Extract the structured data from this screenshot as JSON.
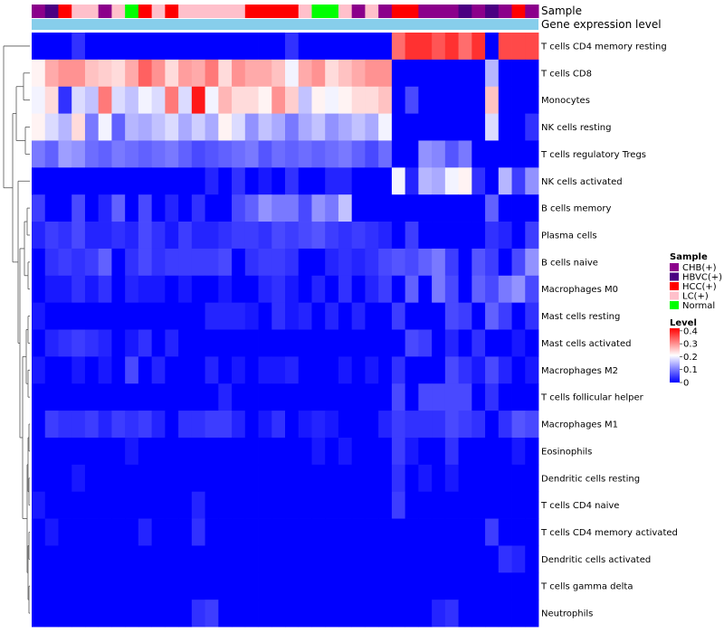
{
  "chart_data": {
    "type": "heatmap",
    "annotation_labels": {
      "sample": "Sample",
      "gene": "Gene expression level"
    },
    "legend_sample": {
      "title": "Sample",
      "items": [
        {
          "label": "CHB(+)",
          "color": "#8B008B"
        },
        {
          "label": "HBVC(+)",
          "color": "#4B0082"
        },
        {
          "label": "HCC(+)",
          "color": "#FF0000"
        },
        {
          "label": "LC(+)",
          "color": "#FFC0CB"
        },
        {
          "label": "Normal",
          "color": "#00FF00"
        }
      ]
    },
    "legend_level": {
      "title": "Level",
      "ticks": [
        "0.4",
        "0.3",
        "0.2",
        "0.1",
        "0"
      ],
      "tick_values": [
        0.4,
        0.3,
        0.2,
        0.1,
        0.0
      ],
      "range": [
        0,
        0.42
      ]
    },
    "colors": {
      "low": "#0000FF",
      "mid": "#FFFFFF",
      "high": "#FF0000",
      "gene_bar": "#87CEEB"
    },
    "sample_groups": [
      "CHB(+)",
      "HBVC(+)",
      "HCC(+)",
      "LC(+)",
      "LC(+)",
      "CHB(+)",
      "LC(+)",
      "Normal",
      "HCC(+)",
      "LC(+)",
      "HCC(+)",
      "LC(+)",
      "LC(+)",
      "LC(+)",
      "LC(+)",
      "LC(+)",
      "HCC(+)",
      "HCC(+)",
      "HCC(+)",
      "HCC(+)",
      "LC(+)",
      "Normal",
      "Normal",
      "LC(+)",
      "CHB(+)",
      "LC(+)",
      "CHB(+)",
      "HCC(+)",
      "HCC(+)",
      "CHB(+)",
      "CHB(+)",
      "CHB(+)",
      "HBVC(+)",
      "CHB(+)",
      "HBVC(+)",
      "CHB(+)",
      "HCC(+)",
      "CHB(+)"
    ],
    "rows": [
      {
        "label": "T cells CD4 memory resting",
        "values": [
          0,
          0,
          0,
          0.04,
          0,
          0,
          0,
          0,
          0,
          0,
          0,
          0,
          0,
          0,
          0,
          0,
          0,
          0,
          0,
          0.04,
          0,
          0,
          0,
          0,
          0,
          0,
          0,
          0.33,
          0.38,
          0.38,
          0.35,
          0.38,
          0.33,
          0.38,
          0,
          0.36,
          0.36,
          0.36
        ]
      },
      {
        "label": "T cells CD8",
        "values": [
          0.22,
          0.28,
          0.3,
          0.3,
          0.26,
          0.25,
          0.24,
          0.28,
          0.34,
          0.3,
          0.24,
          0.29,
          0.28,
          0.32,
          0.24,
          0.3,
          0.28,
          0.28,
          0.26,
          0.2,
          0.28,
          0.3,
          0.24,
          0.26,
          0.28,
          0.3,
          0.3,
          0,
          0,
          0,
          0,
          0,
          0,
          0,
          0.15,
          0,
          0,
          0
        ]
      },
      {
        "label": "Monocytes",
        "values": [
          0.2,
          0.24,
          0.04,
          0.18,
          0.16,
          0.32,
          0.18,
          0.16,
          0.2,
          0.18,
          0.32,
          0.18,
          0.4,
          0.2,
          0.27,
          0.24,
          0.24,
          0.22,
          0.3,
          0.25,
          0.16,
          0.22,
          0.2,
          0.22,
          0.24,
          0.24,
          0.26,
          0,
          0.06,
          0,
          0,
          0,
          0,
          0,
          0.26,
          0,
          0,
          0
        ]
      },
      {
        "label": "NK cells resting",
        "values": [
          0.22,
          0.18,
          0.15,
          0.24,
          0.1,
          0.2,
          0.08,
          0.15,
          0.14,
          0.16,
          0.18,
          0.14,
          0.17,
          0.14,
          0.22,
          0.18,
          0.12,
          0.16,
          0.14,
          0.1,
          0.14,
          0.16,
          0.12,
          0.14,
          0.16,
          0.14,
          0.2,
          0,
          0,
          0,
          0,
          0,
          0,
          0,
          0.18,
          0,
          0,
          0.04
        ]
      },
      {
        "label": "T cells regulatory  Tregs",
        "values": [
          0.1,
          0.08,
          0.13,
          0.12,
          0.09,
          0.08,
          0.1,
          0.09,
          0.08,
          0.09,
          0.1,
          0.08,
          0.06,
          0.07,
          0.08,
          0.09,
          0.1,
          0.07,
          0.09,
          0.08,
          0.09,
          0.08,
          0.09,
          0.1,
          0.08,
          0.06,
          0.09,
          0,
          0,
          0.12,
          0.11,
          0.07,
          0.1,
          0,
          0,
          0,
          0,
          0
        ]
      },
      {
        "label": "NK cells activated",
        "values": [
          0,
          0,
          0,
          0,
          0,
          0,
          0,
          0,
          0,
          0,
          0,
          0,
          0,
          0.03,
          0,
          0.04,
          0,
          0.02,
          0,
          0.04,
          0,
          0,
          0.03,
          0.03,
          0,
          0,
          0,
          0.2,
          0.03,
          0.15,
          0.14,
          0.2,
          0.22,
          0.04,
          0,
          0.15,
          0.05,
          0.12
        ]
      },
      {
        "label": "B cells memory",
        "values": [
          0.05,
          0,
          0,
          0.06,
          0,
          0.03,
          0.08,
          0,
          0.06,
          0,
          0.03,
          0,
          0.04,
          0,
          0,
          0.06,
          0.08,
          0.12,
          0.1,
          0.1,
          0.06,
          0.12,
          0.1,
          0.16,
          0,
          0,
          0,
          0,
          0,
          0,
          0,
          0,
          0,
          0,
          0.08,
          0,
          0,
          0
        ]
      },
      {
        "label": "Plasma cells",
        "values": [
          0.03,
          0.05,
          0.04,
          0.06,
          0.03,
          0.03,
          0.04,
          0.03,
          0.06,
          0.04,
          0.02,
          0.05,
          0.03,
          0.03,
          0.04,
          0.05,
          0.05,
          0.04,
          0.06,
          0.05,
          0.06,
          0.07,
          0.05,
          0.04,
          0.05,
          0.04,
          0.03,
          0,
          0.05,
          0,
          0,
          0,
          0,
          0,
          0.04,
          0.03,
          0,
          0.05
        ]
      },
      {
        "label": "B cells naive",
        "values": [
          0,
          0.04,
          0.05,
          0.04,
          0.05,
          0.08,
          0,
          0.04,
          0.06,
          0.04,
          0.05,
          0.05,
          0.05,
          0.05,
          0.06,
          0,
          0.04,
          0.05,
          0.05,
          0.04,
          0,
          0,
          0.03,
          0.04,
          0.03,
          0.04,
          0.06,
          0.07,
          0.06,
          0.08,
          0.1,
          0.05,
          0,
          0.07,
          0.05,
          0,
          0.06,
          0.12
        ]
      },
      {
        "label": "Macrophages M0",
        "values": [
          0,
          0.02,
          0.02,
          0.04,
          0.02,
          0.04,
          0,
          0.03,
          0.02,
          0.02,
          0,
          0.02,
          0,
          0,
          0.02,
          0,
          0,
          0.03,
          0.04,
          0.02,
          0,
          0.03,
          0,
          0.04,
          0,
          0.03,
          0.05,
          0,
          0.08,
          0,
          0.1,
          0.06,
          0,
          0.08,
          0.06,
          0.1,
          0.12,
          0.06
        ]
      },
      {
        "label": "Mast cells resting",
        "values": [
          0.02,
          0,
          0,
          0,
          0,
          0,
          0,
          0,
          0,
          0,
          0,
          0,
          0,
          0.03,
          0.03,
          0.03,
          0.02,
          0,
          0.04,
          0.02,
          0.03,
          0,
          0.03,
          0,
          0.03,
          0,
          0,
          0.05,
          0,
          0,
          0,
          0.06,
          0.05,
          0,
          0.08,
          0.05,
          0,
          0.04
        ]
      },
      {
        "label": "Mast cells activated",
        "values": [
          0,
          0.03,
          0.04,
          0.05,
          0.04,
          0.03,
          0,
          0.02,
          0.04,
          0,
          0.03,
          0,
          0,
          0,
          0,
          0,
          0,
          0,
          0,
          0,
          0,
          0,
          0,
          0,
          0,
          0,
          0,
          0,
          0.06,
          0.05,
          0,
          0.03,
          0,
          0.04,
          0,
          0,
          0.02,
          0
        ]
      },
      {
        "label": "Macrophages M2",
        "values": [
          0.02,
          0,
          0,
          0.02,
          0,
          0.02,
          0,
          0.06,
          0,
          0.03,
          0,
          0,
          0,
          0.03,
          0,
          0.02,
          0,
          0.02,
          0.02,
          0.03,
          0,
          0,
          0,
          0.02,
          0,
          0.02,
          0,
          0.04,
          0,
          0,
          0,
          0.06,
          0.04,
          0.02,
          0.06,
          0.03,
          0,
          0.02
        ]
      },
      {
        "label": "T cells follicular helper",
        "values": [
          0,
          0,
          0,
          0,
          0,
          0,
          0,
          0,
          0,
          0,
          0,
          0,
          0,
          0,
          0.03,
          0,
          0,
          0,
          0,
          0,
          0,
          0,
          0,
          0,
          0,
          0,
          0,
          0.06,
          0,
          0.06,
          0.06,
          0.06,
          0.06,
          0,
          0.04,
          0,
          0,
          0
        ]
      },
      {
        "label": "Macrophages M1",
        "values": [
          0,
          0.05,
          0.04,
          0.04,
          0.05,
          0.03,
          0.05,
          0.04,
          0.05,
          0.03,
          0,
          0.04,
          0.04,
          0.05,
          0.05,
          0.03,
          0,
          0.02,
          0.04,
          0,
          0.02,
          0.03,
          0.02,
          0,
          0,
          0,
          0.03,
          0.05,
          0.04,
          0.04,
          0.04,
          0.06,
          0.05,
          0.04,
          0,
          0.04,
          0.07,
          0.06
        ]
      },
      {
        "label": "Eosinophils",
        "values": [
          0,
          0,
          0,
          0,
          0,
          0,
          0,
          0.02,
          0,
          0,
          0,
          0,
          0,
          0,
          0,
          0,
          0,
          0,
          0,
          0,
          0,
          0.02,
          0,
          0.02,
          0,
          0,
          0,
          0.05,
          0.02,
          0,
          0,
          0.04,
          0,
          0,
          0,
          0,
          0.02,
          0
        ]
      },
      {
        "label": "Dendritic cells resting",
        "values": [
          0,
          0,
          0,
          0.02,
          0,
          0,
          0,
          0,
          0,
          0,
          0,
          0,
          0,
          0,
          0,
          0,
          0,
          0,
          0,
          0,
          0,
          0,
          0,
          0,
          0,
          0,
          0,
          0.04,
          0,
          0.02,
          0,
          0.02,
          0,
          0,
          0,
          0,
          0,
          0
        ]
      },
      {
        "label": "T cells CD4 naive",
        "values": [
          0.02,
          0,
          0,
          0,
          0,
          0,
          0,
          0,
          0,
          0,
          0,
          0,
          0.03,
          0,
          0,
          0,
          0,
          0,
          0,
          0,
          0,
          0,
          0,
          0,
          0,
          0,
          0,
          0.05,
          0,
          0,
          0,
          0,
          0,
          0,
          0,
          0,
          0,
          0
        ]
      },
      {
        "label": "T cells CD4 memory activated",
        "values": [
          0,
          0.02,
          0,
          0,
          0,
          0,
          0,
          0,
          0.03,
          0,
          0,
          0,
          0.04,
          0,
          0,
          0,
          0,
          0,
          0,
          0,
          0,
          0,
          0,
          0,
          0,
          0,
          0,
          0,
          0,
          0,
          0,
          0,
          0,
          0,
          0.05,
          0,
          0,
          0
        ]
      },
      {
        "label": "Dendritic cells activated",
        "values": [
          0,
          0,
          0,
          0,
          0,
          0,
          0,
          0,
          0,
          0,
          0,
          0,
          0,
          0,
          0,
          0,
          0,
          0,
          0,
          0,
          0,
          0,
          0,
          0,
          0,
          0,
          0,
          0,
          0,
          0,
          0,
          0,
          0,
          0,
          0,
          0.04,
          0.03,
          0
        ]
      },
      {
        "label": "T cells gamma delta",
        "values": [
          0,
          0,
          0,
          0,
          0,
          0,
          0,
          0,
          0,
          0,
          0,
          0,
          0,
          0,
          0,
          0,
          0,
          0,
          0,
          0,
          0,
          0,
          0,
          0,
          0,
          0,
          0,
          0,
          0,
          0,
          0,
          0,
          0,
          0,
          0,
          0,
          0,
          0
        ]
      },
      {
        "label": "Neutrophils",
        "values": [
          0,
          0,
          0,
          0,
          0,
          0,
          0,
          0,
          0,
          0,
          0,
          0,
          0.04,
          0.05,
          0,
          0,
          0,
          0,
          0,
          0,
          0,
          0,
          0,
          0,
          0,
          0,
          0,
          0,
          0,
          0,
          0.03,
          0.04,
          0,
          0,
          0,
          0,
          0,
          0
        ]
      }
    ]
  }
}
